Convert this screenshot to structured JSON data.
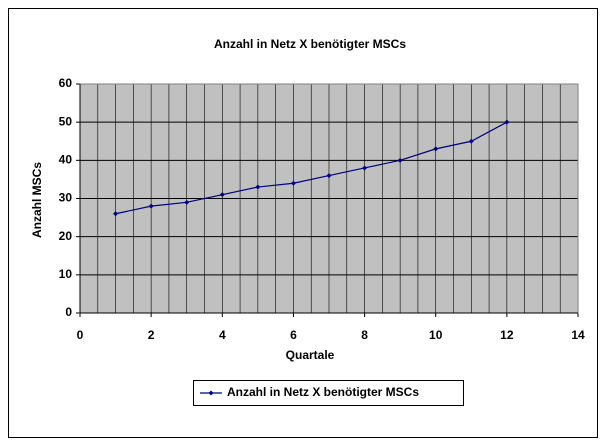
{
  "chart_data": {
    "type": "line",
    "title": "Anzahl in Netz X benötigter MSCs",
    "x_label": "Quartale",
    "y_label": "Anzahl MSCs",
    "series": [
      {
        "name": "Anzahl in Netz X benötigter MSCs",
        "color": "#000080",
        "x": [
          1,
          2,
          3,
          4,
          5,
          6,
          7,
          8,
          9,
          10,
          11,
          12
        ],
        "values": [
          26,
          28,
          29,
          31,
          33,
          34,
          36,
          38,
          40,
          43,
          45,
          50
        ]
      }
    ],
    "xlim": [
      0,
      14
    ],
    "xticks": [
      0,
      2,
      4,
      6,
      8,
      10,
      12,
      14
    ],
    "ylim": [
      0,
      60
    ],
    "yticks": [
      0,
      10,
      20,
      30,
      40,
      50,
      60
    ],
    "grid": true,
    "x_minor_divisions": 4,
    "plot_background": "#c0c0c0",
    "legend": "bottom"
  }
}
